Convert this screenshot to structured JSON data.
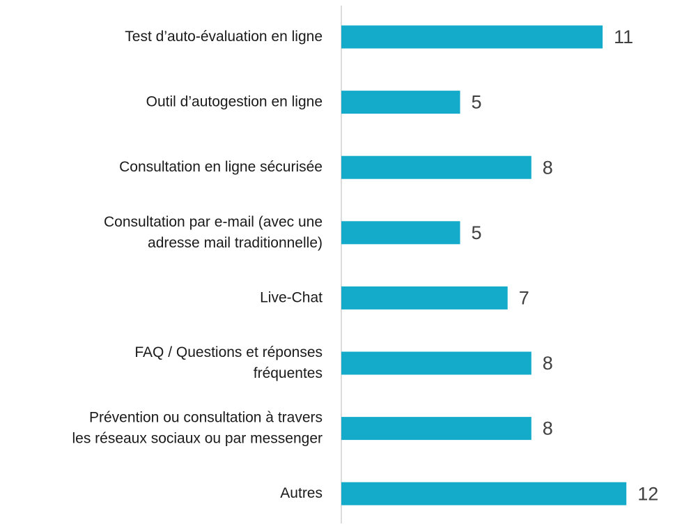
{
  "chart_data": {
    "type": "barh",
    "categories": [
      "Test d’auto-évaluation en ligne",
      "Outil d’autogestion en ligne",
      "Consultation en ligne sécurisée",
      "Consultation par e-mail (avec une\nadresse mail traditionnelle)",
      "Live-Chat",
      "FAQ / Questions et réponses\nfréquentes",
      "Prévention ou consultation à travers\nles réseaux sociaux ou par messenger",
      "Autres"
    ],
    "values": [
      11,
      5,
      8,
      5,
      7,
      8,
      8,
      12
    ],
    "color": "#13abc9"
  }
}
